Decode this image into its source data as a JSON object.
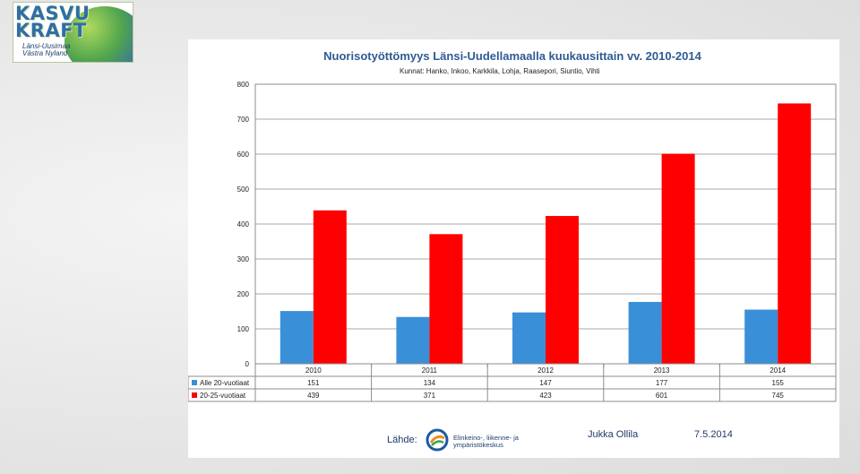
{
  "logo": {
    "line1": "KASVU",
    "line2": "KRAFT",
    "sub1": "Länsi-Uusimaa",
    "sub2": "Västra Nyland"
  },
  "chart_data": {
    "type": "bar",
    "title": "Nuorisotyöttömyys Länsi-Uudellamaalla kuukausittain vv. 2010-2014",
    "subtitle": "Kunnat: Hanko, Inkoo, Karkkila, Lohja, Raasepori, Siuntio, Vihti",
    "categories": [
      "2010",
      "2011",
      "2012",
      "2013",
      "2014"
    ],
    "series": [
      {
        "name": "Alle 20-vuotiaat",
        "color": "#3a8fd9",
        "values": [
          151,
          134,
          147,
          177,
          155
        ]
      },
      {
        "name": "20-25-vuotiaat",
        "color": "#ff0000",
        "values": [
          439,
          371,
          423,
          601,
          745
        ]
      }
    ],
    "ylim": [
      0,
      800
    ],
    "yticks": [
      0,
      100,
      200,
      300,
      400,
      500,
      600,
      700,
      800
    ],
    "grid": true,
    "legend": "data table"
  },
  "footer": {
    "source_label": "Lähde:",
    "org_line1": "Elinkeino-, liikenne- ja",
    "org_line2": "ympäristökeskus",
    "author": "Jukka Ollila",
    "date": "7.5.2014"
  }
}
